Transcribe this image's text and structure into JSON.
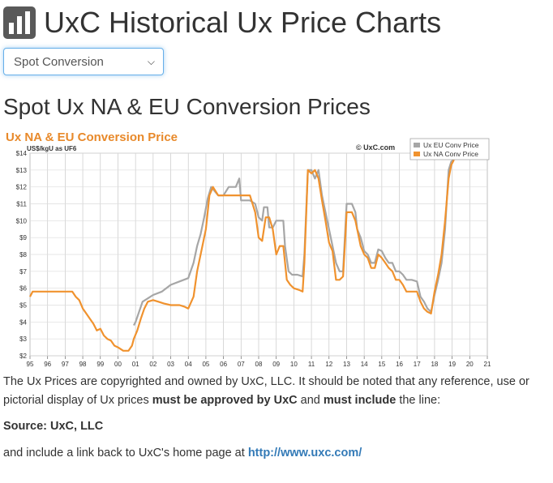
{
  "header": {
    "title": "UxC Historical Ux Price Charts",
    "logo_icon": "bar-chart-icon"
  },
  "selector": {
    "selected": "Spot Conversion",
    "icon": "chevron-down-icon"
  },
  "section_title": "Spot Ux NA & EU Conversion Prices",
  "chart_data": {
    "type": "line",
    "title": "Ux NA & EU Conversion Price",
    "ylabel": "US$/kgU as UF6",
    "copyright": "© UxC.com",
    "xlabel": "",
    "xlim": [
      1995,
      2021
    ],
    "ylim": [
      2,
      14
    ],
    "x_ticks": [
      "95",
      "96",
      "97",
      "98",
      "99",
      "00",
      "01",
      "02",
      "03",
      "04",
      "05",
      "06",
      "07",
      "08",
      "09",
      "10",
      "11",
      "12",
      "13",
      "14",
      "15",
      "16",
      "17",
      "18",
      "19",
      "20",
      "21"
    ],
    "y_ticks": [
      "$2",
      "$3",
      "$4",
      "$5",
      "$6",
      "$7",
      "$8",
      "$9",
      "$10",
      "$11",
      "$12",
      "$13",
      "$14"
    ],
    "legend_position": "top-right",
    "series": [
      {
        "name": "Ux EU Conv Price",
        "color": "#a6a6a6",
        "points": [
          [
            2000.9,
            3.8
          ],
          [
            2001.0,
            4.0
          ],
          [
            2001.2,
            4.6
          ],
          [
            2001.4,
            5.2
          ],
          [
            2001.7,
            5.4
          ],
          [
            2002.0,
            5.6
          ],
          [
            2002.5,
            5.8
          ],
          [
            2003.0,
            6.2
          ],
          [
            2003.5,
            6.4
          ],
          [
            2004.0,
            6.6
          ],
          [
            2004.3,
            7.5
          ],
          [
            2004.5,
            8.5
          ],
          [
            2004.7,
            9.2
          ],
          [
            2004.9,
            10.2
          ],
          [
            2005.1,
            11.3
          ],
          [
            2005.3,
            12.0
          ],
          [
            2005.7,
            11.5
          ],
          [
            2006.0,
            11.5
          ],
          [
            2006.3,
            12.0
          ],
          [
            2006.7,
            12.0
          ],
          [
            2006.9,
            12.5
          ],
          [
            2007.0,
            11.2
          ],
          [
            2007.5,
            11.2
          ],
          [
            2007.8,
            11.0
          ],
          [
            2008.0,
            10.2
          ],
          [
            2008.2,
            10.0
          ],
          [
            2008.3,
            10.8
          ],
          [
            2008.5,
            10.8
          ],
          [
            2008.6,
            9.6
          ],
          [
            2008.8,
            9.6
          ],
          [
            2009.0,
            10.0
          ],
          [
            2009.2,
            10.0
          ],
          [
            2009.4,
            10.0
          ],
          [
            2009.5,
            8.5
          ],
          [
            2009.7,
            7.0
          ],
          [
            2009.9,
            6.8
          ],
          [
            2010.2,
            6.8
          ],
          [
            2010.5,
            6.7
          ],
          [
            2010.6,
            8.0
          ],
          [
            2010.8,
            13.0
          ],
          [
            2011.0,
            13.0
          ],
          [
            2011.2,
            12.5
          ],
          [
            2011.4,
            13.0
          ],
          [
            2011.6,
            11.5
          ],
          [
            2011.8,
            10.5
          ],
          [
            2012.0,
            9.5
          ],
          [
            2012.2,
            8.5
          ],
          [
            2012.4,
            7.5
          ],
          [
            2012.6,
            7.0
          ],
          [
            2012.8,
            7.0
          ],
          [
            2012.9,
            9.0
          ],
          [
            2013.0,
            11.0
          ],
          [
            2013.3,
            11.0
          ],
          [
            2013.5,
            10.5
          ],
          [
            2013.6,
            9.5
          ],
          [
            2013.8,
            9.0
          ],
          [
            2014.0,
            8.2
          ],
          [
            2014.2,
            8.0
          ],
          [
            2014.4,
            7.5
          ],
          [
            2014.6,
            7.5
          ],
          [
            2014.8,
            8.3
          ],
          [
            2015.0,
            8.2
          ],
          [
            2015.2,
            7.8
          ],
          [
            2015.4,
            7.5
          ],
          [
            2015.6,
            7.5
          ],
          [
            2015.8,
            7.0
          ],
          [
            2016.0,
            7.0
          ],
          [
            2016.2,
            6.8
          ],
          [
            2016.4,
            6.5
          ],
          [
            2016.7,
            6.5
          ],
          [
            2017.0,
            6.4
          ],
          [
            2017.2,
            5.5
          ],
          [
            2017.4,
            5.2
          ],
          [
            2017.6,
            4.8
          ],
          [
            2017.8,
            4.6
          ],
          [
            2018.0,
            5.6
          ],
          [
            2018.2,
            6.5
          ],
          [
            2018.4,
            7.5
          ],
          [
            2018.6,
            9.5
          ],
          [
            2018.8,
            13.0
          ],
          [
            2018.95,
            13.5
          ],
          [
            2019.1,
            13.6
          ]
        ]
      },
      {
        "name": "Ux NA Conv Price",
        "color": "#f0922e",
        "points": [
          [
            1995.0,
            5.5
          ],
          [
            1995.15,
            5.8
          ],
          [
            1995.5,
            5.8
          ],
          [
            1996.0,
            5.8
          ],
          [
            1996.5,
            5.8
          ],
          [
            1997.0,
            5.8
          ],
          [
            1997.4,
            5.8
          ],
          [
            1997.6,
            5.5
          ],
          [
            1997.8,
            5.3
          ],
          [
            1998.0,
            4.8
          ],
          [
            1998.2,
            4.5
          ],
          [
            1998.4,
            4.2
          ],
          [
            1998.6,
            3.9
          ],
          [
            1998.8,
            3.5
          ],
          [
            1999.0,
            3.6
          ],
          [
            1999.2,
            3.2
          ],
          [
            1999.4,
            3.0
          ],
          [
            1999.6,
            2.9
          ],
          [
            1999.8,
            2.6
          ],
          [
            2000.0,
            2.5
          ],
          [
            2000.3,
            2.3
          ],
          [
            2000.6,
            2.3
          ],
          [
            2000.8,
            2.6
          ],
          [
            2000.9,
            3.0
          ],
          [
            2001.1,
            3.5
          ],
          [
            2001.3,
            4.2
          ],
          [
            2001.5,
            4.8
          ],
          [
            2001.7,
            5.2
          ],
          [
            2002.0,
            5.3
          ],
          [
            2002.3,
            5.2
          ],
          [
            2002.6,
            5.1
          ],
          [
            2003.0,
            5.0
          ],
          [
            2003.5,
            5.0
          ],
          [
            2003.8,
            4.9
          ],
          [
            2004.0,
            4.8
          ],
          [
            2004.3,
            5.5
          ],
          [
            2004.5,
            7.0
          ],
          [
            2004.8,
            8.5
          ],
          [
            2005.0,
            9.5
          ],
          [
            2005.2,
            11.5
          ],
          [
            2005.4,
            12.0
          ],
          [
            2005.7,
            11.5
          ],
          [
            2006.0,
            11.5
          ],
          [
            2006.5,
            11.5
          ],
          [
            2007.0,
            11.5
          ],
          [
            2007.5,
            11.5
          ],
          [
            2007.8,
            10.5
          ],
          [
            2008.0,
            9.0
          ],
          [
            2008.2,
            8.8
          ],
          [
            2008.4,
            10.2
          ],
          [
            2008.6,
            10.2
          ],
          [
            2008.8,
            9.5
          ],
          [
            2009.0,
            8.0
          ],
          [
            2009.2,
            8.5
          ],
          [
            2009.4,
            8.5
          ],
          [
            2009.6,
            6.5
          ],
          [
            2009.8,
            6.2
          ],
          [
            2010.0,
            6.0
          ],
          [
            2010.3,
            5.9
          ],
          [
            2010.5,
            5.8
          ],
          [
            2010.6,
            7.5
          ],
          [
            2010.8,
            13.0
          ],
          [
            2011.0,
            12.8
          ],
          [
            2011.2,
            13.0
          ],
          [
            2011.4,
            12.5
          ],
          [
            2011.6,
            11.2
          ],
          [
            2011.8,
            10.0
          ],
          [
            2012.0,
            8.7
          ],
          [
            2012.2,
            8.2
          ],
          [
            2012.4,
            6.5
          ],
          [
            2012.6,
            6.5
          ],
          [
            2012.8,
            6.7
          ],
          [
            2012.9,
            8.5
          ],
          [
            2013.0,
            10.5
          ],
          [
            2013.3,
            10.5
          ],
          [
            2013.5,
            10.0
          ],
          [
            2013.6,
            9.5
          ],
          [
            2013.8,
            8.5
          ],
          [
            2014.0,
            8.0
          ],
          [
            2014.2,
            7.8
          ],
          [
            2014.4,
            7.2
          ],
          [
            2014.6,
            7.2
          ],
          [
            2014.8,
            8.0
          ],
          [
            2015.0,
            7.8
          ],
          [
            2015.2,
            7.5
          ],
          [
            2015.4,
            7.2
          ],
          [
            2015.6,
            7.0
          ],
          [
            2015.8,
            6.5
          ],
          [
            2016.0,
            6.5
          ],
          [
            2016.2,
            6.2
          ],
          [
            2016.4,
            5.8
          ],
          [
            2016.7,
            5.8
          ],
          [
            2017.0,
            5.8
          ],
          [
            2017.2,
            5.2
          ],
          [
            2017.4,
            4.8
          ],
          [
            2017.6,
            4.6
          ],
          [
            2017.8,
            4.5
          ],
          [
            2018.0,
            5.8
          ],
          [
            2018.2,
            6.8
          ],
          [
            2018.4,
            8.0
          ],
          [
            2018.6,
            10.0
          ],
          [
            2018.8,
            12.5
          ],
          [
            2018.95,
            13.3
          ],
          [
            2019.1,
            13.6
          ]
        ]
      }
    ]
  },
  "notice": {
    "p1_a": "The Ux Prices are copyrighted and owned by UxC, LLC. It should be noted that any reference, use or pictorial display of Ux prices ",
    "p1_b": "must be approved by UxC",
    "p1_c": " and ",
    "p1_d": "must include",
    "p1_e": " the line:",
    "source": "Source: UxC, LLC",
    "p3_a": "and include a link back to UxC's home page at ",
    "link": "http://www.uxc.com/"
  }
}
